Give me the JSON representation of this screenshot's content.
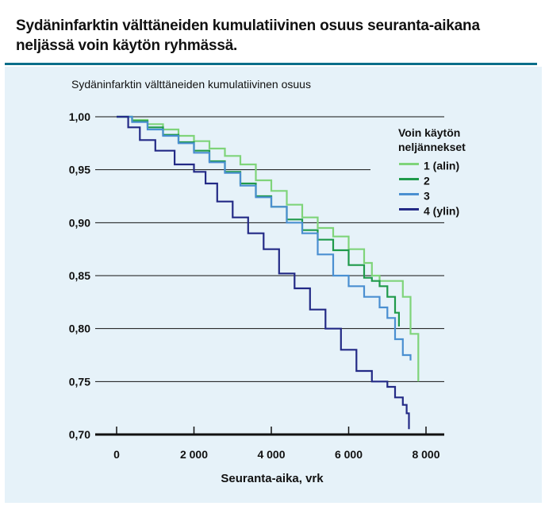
{
  "header": {
    "title": "Sydäninfarktin välttäneiden kumulatiivinen osuus seuranta-aikana neljässä voin käytön ryhmässä."
  },
  "chart_data": {
    "type": "line",
    "title": "Sydäninfarktin välttäneiden kumulatiivinen osuus",
    "xlabel": "Seuranta-aika, vrk",
    "ylabel": "",
    "xlim": [
      0,
      8000
    ],
    "ylim": [
      0.7,
      1.0
    ],
    "x_ticks": [
      {
        "value": 0,
        "label": "0"
      },
      {
        "value": 2000,
        "label": "2 000"
      },
      {
        "value": 4000,
        "label": "4 000"
      },
      {
        "value": 6000,
        "label": "6 000"
      },
      {
        "value": 8000,
        "label": "8 000"
      }
    ],
    "y_ticks": [
      {
        "value": 1.0,
        "label": "1,00"
      },
      {
        "value": 0.95,
        "label": "0,95"
      },
      {
        "value": 0.9,
        "label": "0,90"
      },
      {
        "value": 0.85,
        "label": "0,85"
      },
      {
        "value": 0.8,
        "label": "0,80"
      },
      {
        "value": 0.75,
        "label": "0,75"
      },
      {
        "value": 0.7,
        "label": "0,70"
      }
    ],
    "grid": "horizontal",
    "legend_title": "Voin käytön neljännekset",
    "legend_placement": "top-right",
    "series": [
      {
        "name": "1 (alin)",
        "color": "#7fd47a",
        "x": [
          0,
          400,
          800,
          1200,
          1600,
          2000,
          2400,
          2800,
          3200,
          3600,
          4000,
          4400,
          4800,
          5200,
          5600,
          6000,
          6400,
          6600,
          6800,
          7000,
          7200,
          7400,
          7600,
          7800
        ],
        "y": [
          1.0,
          0.997,
          0.993,
          0.988,
          0.982,
          0.977,
          0.97,
          0.963,
          0.955,
          0.94,
          0.93,
          0.917,
          0.905,
          0.895,
          0.887,
          0.875,
          0.862,
          0.85,
          0.845,
          0.845,
          0.845,
          0.83,
          0.795,
          0.75
        ]
      },
      {
        "name": "2",
        "color": "#1f9a4a",
        "x": [
          0,
          400,
          800,
          1200,
          1600,
          2000,
          2400,
          2800,
          3200,
          3600,
          4000,
          4400,
          4800,
          5200,
          5600,
          6000,
          6400,
          6600,
          6800,
          7000,
          7200,
          7300
        ],
        "y": [
          1.0,
          0.996,
          0.99,
          0.983,
          0.976,
          0.968,
          0.958,
          0.948,
          0.937,
          0.925,
          0.915,
          0.903,
          0.893,
          0.884,
          0.874,
          0.86,
          0.848,
          0.845,
          0.84,
          0.83,
          0.815,
          0.802
        ]
      },
      {
        "name": "3",
        "color": "#4a8fd1",
        "x": [
          0,
          400,
          800,
          1200,
          1600,
          2000,
          2400,
          2800,
          3200,
          3600,
          4000,
          4400,
          4800,
          5200,
          5600,
          6000,
          6400,
          6800,
          7000,
          7200,
          7400,
          7600
        ],
        "y": [
          1.0,
          0.995,
          0.988,
          0.982,
          0.975,
          0.966,
          0.957,
          0.947,
          0.935,
          0.924,
          0.915,
          0.9,
          0.89,
          0.87,
          0.85,
          0.84,
          0.83,
          0.82,
          0.81,
          0.79,
          0.775,
          0.77
        ]
      },
      {
        "name": "4 (ylin)",
        "color": "#232a86",
        "x": [
          0,
          300,
          600,
          1000,
          1500,
          2000,
          2300,
          2600,
          3000,
          3400,
          3800,
          4200,
          4600,
          5000,
          5400,
          5800,
          6200,
          6600,
          7000,
          7200,
          7400,
          7500,
          7560
        ],
        "y": [
          1.0,
          0.99,
          0.978,
          0.968,
          0.955,
          0.948,
          0.937,
          0.92,
          0.905,
          0.89,
          0.875,
          0.852,
          0.838,
          0.818,
          0.8,
          0.78,
          0.76,
          0.75,
          0.745,
          0.735,
          0.728,
          0.72,
          0.705
        ]
      }
    ]
  }
}
